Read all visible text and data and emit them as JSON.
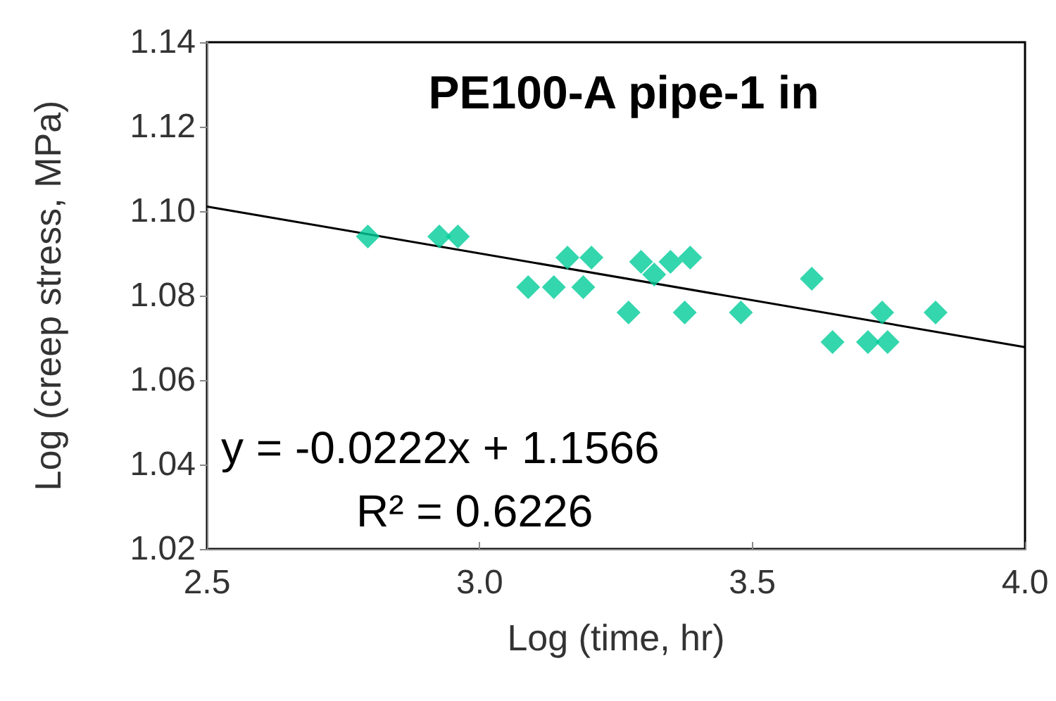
{
  "chart_data": {
    "type": "scatter",
    "title": "PE100-A pipe-1 in",
    "xlabel": "Log (time, hr)",
    "ylabel": "Log (creep stress, MPa)",
    "series": [
      {
        "marker": "diamond",
        "color": "#00cc99",
        "x": [
          2.795,
          2.926,
          2.96,
          3.089,
          3.136,
          3.161,
          3.19,
          3.205,
          3.273,
          3.296,
          3.32,
          3.35,
          3.376,
          3.386,
          3.479,
          3.609,
          3.647,
          3.712,
          3.738,
          3.748,
          3.836
        ],
        "values": [
          1.094,
          1.094,
          1.094,
          1.082,
          1.082,
          1.089,
          1.082,
          1.089,
          1.076,
          1.088,
          1.085,
          1.088,
          1.076,
          1.089,
          1.076,
          1.084,
          1.069,
          1.069,
          1.076,
          1.069,
          1.076
        ]
      },
      {
        "type": "line",
        "marker": "none",
        "color": "#000000",
        "x": [
          2.5,
          4.0
        ],
        "values": [
          1.1011,
          1.0678
        ]
      }
    ],
    "xlim": [
      2.5,
      4.0
    ],
    "xticks": [
      2.5,
      {
        "value": 3,
        "label": "3.0"
      },
      3.5,
      {
        "value": 4,
        "label": "4.0"
      }
    ],
    "ylim": [
      1.02,
      1.14
    ],
    "yticks": [
      1.02,
      1.04,
      1.06,
      1.08,
      {
        "value": 1.1,
        "label": "1.10"
      },
      1.12,
      1.14
    ],
    "annotations": [
      "y = -0.0222x + 1.1566",
      "R² = 0.6226"
    ],
    "grid": false
  }
}
